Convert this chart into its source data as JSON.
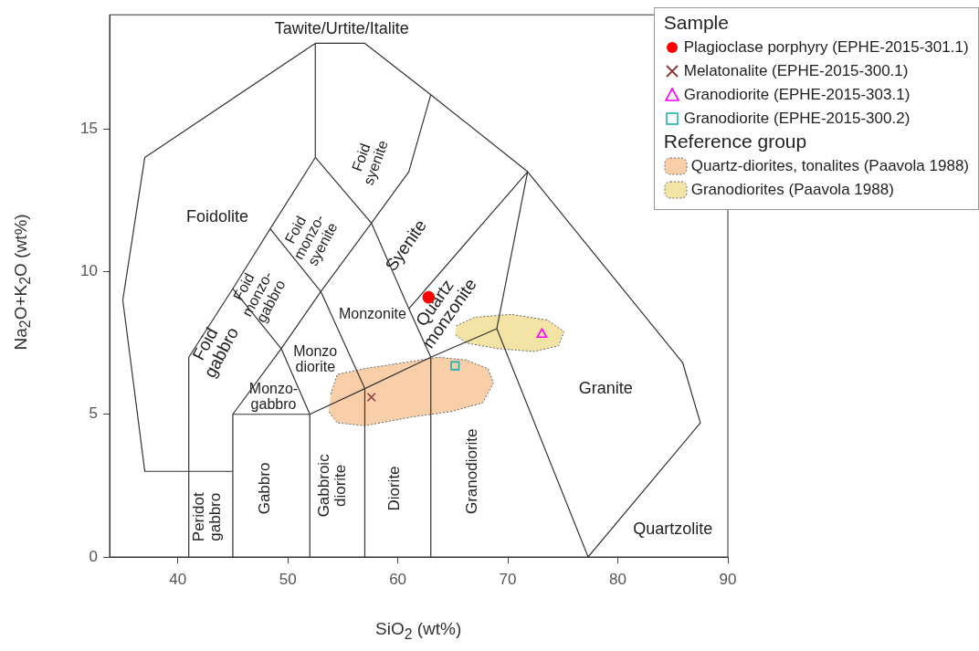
{
  "chart_data": {
    "type": "scatter",
    "xlabel": "SiO$_{2}$ (wt%)",
    "ylabel": "Na$_{2}$O+K$_{2}$O (wt%)",
    "legend_title": "Sample",
    "legend": "top right",
    "grid": false,
    "xlim": [
      33.8,
      90
    ],
    "xticks": [
      40,
      50,
      60,
      70,
      80,
      90
    ],
    "ylim": [
      0,
      19
    ],
    "yticks": [
      0,
      5,
      10,
      15
    ],
    "series": [
      {
        "type": "area",
        "name": "Quartz-diorites, tonalites (Paavola 1988)",
        "color": "#f8cfa9",
        "line_style": "dotted",
        "x": [
          53.9,
          54.5,
          57.0,
          60.4,
          63.7,
          66.2,
          68.2,
          68.7,
          67.7,
          64.9,
          61.2,
          57.0,
          54.5,
          53.7
        ],
        "values": [
          5.7,
          6.4,
          6.6,
          6.8,
          7.0,
          6.9,
          6.6,
          6.1,
          5.4,
          5.1,
          4.9,
          4.6,
          4.7,
          5.1
        ]
      },
      {
        "type": "area",
        "name": "Granodiorites (Paavola 1988)",
        "color": "#f3e3a5",
        "line_style": "dotted",
        "x": [
          65.3,
          67.0,
          70.3,
          73.6,
          75.1,
          74.6,
          72.4,
          69.1,
          66.2,
          65.2
        ],
        "values": [
          8.1,
          8.4,
          8.5,
          8.3,
          7.9,
          7.4,
          7.2,
          7.3,
          7.5,
          7.8
        ]
      },
      {
        "type": "line",
        "color": "#333333",
        "line_style": "solid",
        "x": [
          45,
          37,
          35,
          37,
          52.5,
          57,
          63,
          71.8,
          85.9,
          87.5,
          77.3,
          69,
          71.8,
          61,
          63,
          69,
          63,
          63,
          63,
          57,
          57,
          57,
          52,
          52,
          52,
          45,
          45,
          45,
          49.4,
          52,
          49.4,
          45,
          41,
          41,
          41,
          45,
          48.4,
          52.5,
          52.5,
          52.5,
          57.6,
          53,
          48.4,
          53,
          49.4,
          53,
          57,
          53,
          57.6,
          61,
          57.6,
          61,
          63
        ],
        "values": [
          3,
          3,
          9,
          14,
          18,
          18,
          16.2,
          13.5,
          6.8,
          4.7,
          0,
          8,
          13.5,
          8.7,
          7,
          8,
          7,
          0,
          7,
          5.9,
          0,
          5.9,
          5,
          0,
          5,
          5,
          0,
          5,
          7.3,
          5,
          7.3,
          9.4,
          7,
          0,
          7,
          9.4,
          11.5,
          14,
          18,
          14,
          11.7,
          9.3,
          11.5,
          9.3,
          7.3,
          9.3,
          5.9,
          9.3,
          11.7,
          8.7,
          11.7,
          13.5,
          16.2
        ]
      },
      {
        "name": "Plagioclase porphyry (EPHE-2015-301.1)",
        "color": "#ff0000",
        "marker": "circle",
        "x": [
          62.8
        ],
        "values": [
          9.1
        ]
      },
      {
        "name": "Melatonalite (EPHE-2015-300.1)",
        "color": "#8b3a3a",
        "marker": "cross",
        "x": [
          57.6
        ],
        "values": [
          5.6
        ]
      },
      {
        "name": "Granodiorite (EPHE-2015-303.1)",
        "color": "#ff00ff",
        "marker": "triangle",
        "x": [
          73.1
        ],
        "values": [
          7.8
        ]
      },
      {
        "name": "Granodiorite (EPHE-2015-300.2)",
        "color": "#20b2aa",
        "marker": "square",
        "x": [
          65.2
        ],
        "values": [
          6.7
        ]
      }
    ],
    "annotations": [
      "Reference group",
      "Tawite/Urtite/Italite",
      "Foidolite",
      "Foid syenite",
      "Foid monzo-syenite",
      "Foid monzo-gabbro",
      "Foid gabbro",
      "Syenite",
      "Quartz monzonite",
      "Monzonite",
      "Monzo diorite",
      "Monzo-gabbro",
      "Gabbro",
      "Peridot gabbro",
      "Gabbroic diorite",
      "Diorite",
      "Granodiorite",
      "Granite",
      "Quartzolite"
    ]
  }
}
